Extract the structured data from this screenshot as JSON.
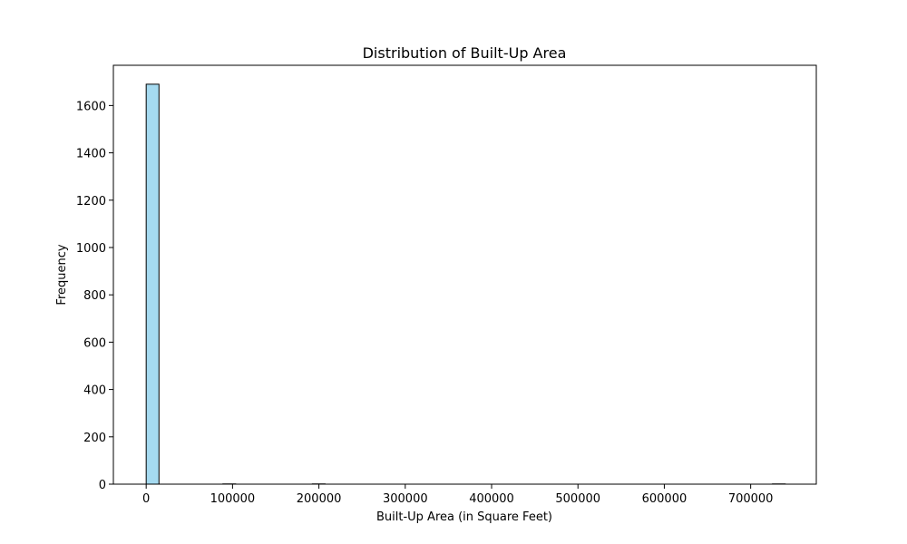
{
  "chart_data": {
    "type": "bar",
    "title": "Distribution of Built-Up Area",
    "xlabel": "Built-Up Area (in Square Feet)",
    "ylabel": "Frequency",
    "xlim": [
      -38000,
      776000
    ],
    "ylim": [
      0,
      1770
    ],
    "x_ticks": [
      0,
      100000,
      200000,
      300000,
      400000,
      500000,
      600000,
      700000
    ],
    "x_tick_labels": [
      "0",
      "100000",
      "200000",
      "300000",
      "400000",
      "500000",
      "600000",
      "700000"
    ],
    "y_ticks": [
      0,
      200,
      400,
      600,
      800,
      1000,
      1200,
      1400,
      1600
    ],
    "y_tick_labels": [
      "0",
      "200",
      "400",
      "600",
      "800",
      "1000",
      "1200",
      "1400",
      "1600"
    ],
    "bins": {
      "start": 0,
      "width": 14800,
      "counts": [
        1690,
        0,
        0,
        0,
        0,
        0,
        1,
        0,
        0,
        0,
        0,
        0,
        0,
        1,
        0,
        0,
        0,
        0,
        0,
        0,
        0,
        0,
        0,
        0,
        0,
        0,
        0,
        0,
        0,
        0,
        0,
        0,
        0,
        0,
        0,
        0,
        0,
        0,
        0,
        0,
        0,
        0,
        0,
        0,
        0,
        0,
        0,
        0,
        0,
        1
      ]
    },
    "grid": false,
    "colors": {
      "bar_fill": "#87ceeb",
      "bar_edge": "#000000",
      "axis": "#000000"
    }
  }
}
